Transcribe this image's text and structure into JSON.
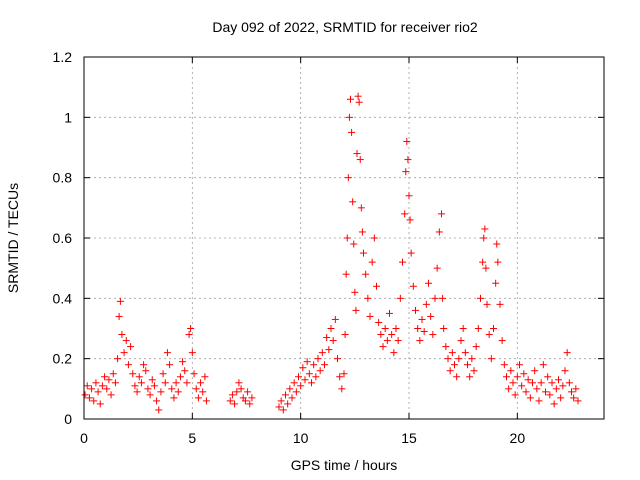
{
  "chart_data": {
    "type": "scatter",
    "title": "Day 092 of 2022, SRMTID for receiver rio2",
    "xlabel": "GPS time / hours",
    "ylabel": "SRMTID / TECUs",
    "xlim": [
      0,
      24
    ],
    "ylim": [
      0,
      1.2
    ],
    "xticks": [
      0,
      5,
      10,
      15,
      20
    ],
    "xtick_labels": [
      "0",
      "5",
      "10",
      "15",
      "20"
    ],
    "yticks": [
      0,
      0.2,
      0.4,
      0.6,
      0.8,
      1.0,
      1.2
    ],
    "ytick_labels": [
      "0",
      "0.2",
      "0.4",
      "0.6",
      "0.8",
      "1",
      "1.2"
    ],
    "grid": true,
    "marker": "+",
    "color": "#ff0000",
    "series": [
      {
        "name": "SRMTID",
        "points": [
          [
            0.05,
            0.08
          ],
          [
            0.15,
            0.11
          ],
          [
            0.25,
            0.07
          ],
          [
            0.35,
            0.1
          ],
          [
            0.45,
            0.06
          ],
          [
            0.55,
            0.12
          ],
          [
            0.65,
            0.09
          ],
          [
            0.75,
            0.05
          ],
          [
            0.85,
            0.11
          ],
          [
            0.95,
            0.14
          ],
          [
            1.05,
            0.1
          ],
          [
            1.15,
            0.13
          ],
          [
            1.25,
            0.08
          ],
          [
            1.35,
            0.15
          ],
          [
            1.45,
            0.12
          ],
          [
            1.55,
            0.2
          ],
          [
            1.62,
            0.34
          ],
          [
            1.68,
            0.39
          ],
          [
            1.75,
            0.28
          ],
          [
            1.85,
            0.22
          ],
          [
            1.95,
            0.26
          ],
          [
            2.05,
            0.18
          ],
          [
            2.15,
            0.24
          ],
          [
            2.25,
            0.15
          ],
          [
            2.35,
            0.11
          ],
          [
            2.45,
            0.09
          ],
          [
            2.55,
            0.14
          ],
          [
            2.65,
            0.12
          ],
          [
            2.75,
            0.18
          ],
          [
            2.85,
            0.16
          ],
          [
            2.95,
            0.1
          ],
          [
            3.05,
            0.08
          ],
          [
            3.15,
            0.13
          ],
          [
            3.25,
            0.11
          ],
          [
            3.35,
            0.06
          ],
          [
            3.45,
            0.03
          ],
          [
            3.55,
            0.09
          ],
          [
            3.65,
            0.15
          ],
          [
            3.75,
            0.12
          ],
          [
            3.85,
            0.22
          ],
          [
            3.95,
            0.18
          ],
          [
            4.05,
            0.1
          ],
          [
            4.15,
            0.07
          ],
          [
            4.25,
            0.12
          ],
          [
            4.35,
            0.09
          ],
          [
            4.45,
            0.14
          ],
          [
            4.55,
            0.19
          ],
          [
            4.65,
            0.16
          ],
          [
            4.75,
            0.12
          ],
          [
            4.85,
            0.28
          ],
          [
            4.92,
            0.3
          ],
          [
            5.0,
            0.22
          ],
          [
            5.08,
            0.15
          ],
          [
            5.18,
            0.1
          ],
          [
            5.28,
            0.07
          ],
          [
            5.38,
            0.12
          ],
          [
            5.48,
            0.09
          ],
          [
            5.58,
            0.14
          ],
          [
            5.65,
            0.06
          ],
          [
            6.75,
            0.06
          ],
          [
            6.85,
            0.08
          ],
          [
            6.95,
            0.05
          ],
          [
            7.05,
            0.09
          ],
          [
            7.15,
            0.12
          ],
          [
            7.25,
            0.1
          ],
          [
            7.35,
            0.07
          ],
          [
            7.45,
            0.06
          ],
          [
            7.55,
            0.09
          ],
          [
            7.65,
            0.05
          ],
          [
            7.75,
            0.07
          ],
          [
            9.0,
            0.04
          ],
          [
            9.1,
            0.06
          ],
          [
            9.2,
            0.03
          ],
          [
            9.3,
            0.08
          ],
          [
            9.4,
            0.05
          ],
          [
            9.5,
            0.1
          ],
          [
            9.6,
            0.07
          ],
          [
            9.7,
            0.12
          ],
          [
            9.8,
            0.09
          ],
          [
            9.9,
            0.14
          ],
          [
            10.0,
            0.11
          ],
          [
            10.1,
            0.17
          ],
          [
            10.2,
            0.13
          ],
          [
            10.3,
            0.19
          ],
          [
            10.4,
            0.15
          ],
          [
            10.5,
            0.12
          ],
          [
            10.6,
            0.18
          ],
          [
            10.7,
            0.14
          ],
          [
            10.8,
            0.2
          ],
          [
            10.9,
            0.16
          ],
          [
            11.0,
            0.22
          ],
          [
            11.1,
            0.18
          ],
          [
            11.2,
            0.27
          ],
          [
            11.3,
            0.23
          ],
          [
            11.4,
            0.3
          ],
          [
            11.5,
            0.26
          ],
          [
            11.6,
            0.33
          ],
          [
            11.7,
            0.2
          ],
          [
            11.8,
            0.14
          ],
          [
            11.9,
            0.1
          ],
          [
            12.0,
            0.15
          ],
          [
            12.05,
            0.28
          ],
          [
            12.1,
            0.48
          ],
          [
            12.15,
            0.6
          ],
          [
            12.2,
            0.8
          ],
          [
            12.25,
            1.0
          ],
          [
            12.3,
            1.06
          ],
          [
            12.35,
            0.95
          ],
          [
            12.4,
            0.72
          ],
          [
            12.45,
            0.58
          ],
          [
            12.5,
            0.42
          ],
          [
            12.55,
            0.36
          ],
          [
            12.6,
            0.88
          ],
          [
            12.65,
            1.07
          ],
          [
            12.7,
            1.05
          ],
          [
            12.75,
            0.86
          ],
          [
            12.8,
            0.7
          ],
          [
            12.85,
            0.62
          ],
          [
            12.9,
            0.55
          ],
          [
            13.0,
            0.48
          ],
          [
            13.1,
            0.4
          ],
          [
            13.2,
            0.34
          ],
          [
            13.3,
            0.52
          ],
          [
            13.4,
            0.6
          ],
          [
            13.5,
            0.44
          ],
          [
            13.6,
            0.32
          ],
          [
            13.7,
            0.28
          ],
          [
            13.8,
            0.24
          ],
          [
            13.9,
            0.3
          ],
          [
            14.0,
            0.26
          ],
          [
            14.1,
            0.35
          ],
          [
            14.2,
            0.28
          ],
          [
            14.3,
            0.22
          ],
          [
            14.4,
            0.3
          ],
          [
            14.5,
            0.26
          ],
          [
            14.6,
            0.4
          ],
          [
            14.7,
            0.52
          ],
          [
            14.8,
            0.68
          ],
          [
            14.85,
            0.82
          ],
          [
            14.9,
            0.92
          ],
          [
            14.95,
            0.86
          ],
          [
            15.0,
            0.74
          ],
          [
            15.05,
            0.66
          ],
          [
            15.1,
            0.55
          ],
          [
            15.2,
            0.44
          ],
          [
            15.3,
            0.36
          ],
          [
            15.4,
            0.3
          ],
          [
            15.5,
            0.26
          ],
          [
            15.6,
            0.33
          ],
          [
            15.7,
            0.29
          ],
          [
            15.8,
            0.38
          ],
          [
            15.9,
            0.45
          ],
          [
            16.0,
            0.34
          ],
          [
            16.1,
            0.28
          ],
          [
            16.2,
            0.4
          ],
          [
            16.3,
            0.5
          ],
          [
            16.4,
            0.62
          ],
          [
            16.5,
            0.68
          ],
          [
            16.55,
            0.4
          ],
          [
            16.6,
            0.3
          ],
          [
            16.7,
            0.24
          ],
          [
            16.8,
            0.2
          ],
          [
            16.9,
            0.16
          ],
          [
            17.0,
            0.22
          ],
          [
            17.1,
            0.18
          ],
          [
            17.2,
            0.14
          ],
          [
            17.3,
            0.2
          ],
          [
            17.4,
            0.26
          ],
          [
            17.5,
            0.3
          ],
          [
            17.6,
            0.22
          ],
          [
            17.7,
            0.18
          ],
          [
            17.8,
            0.14
          ],
          [
            17.9,
            0.2
          ],
          [
            18.0,
            0.16
          ],
          [
            18.1,
            0.24
          ],
          [
            18.2,
            0.3
          ],
          [
            18.3,
            0.4
          ],
          [
            18.4,
            0.52
          ],
          [
            18.45,
            0.6
          ],
          [
            18.5,
            0.63
          ],
          [
            18.55,
            0.5
          ],
          [
            18.6,
            0.38
          ],
          [
            18.7,
            0.28
          ],
          [
            18.8,
            0.2
          ],
          [
            18.9,
            0.3
          ],
          [
            19.0,
            0.45
          ],
          [
            19.05,
            0.58
          ],
          [
            19.1,
            0.52
          ],
          [
            19.2,
            0.38
          ],
          [
            19.3,
            0.26
          ],
          [
            19.4,
            0.18
          ],
          [
            19.5,
            0.14
          ],
          [
            19.6,
            0.1
          ],
          [
            19.7,
            0.16
          ],
          [
            19.8,
            0.12
          ],
          [
            19.9,
            0.08
          ],
          [
            20.0,
            0.14
          ],
          [
            20.1,
            0.18
          ],
          [
            20.2,
            0.11
          ],
          [
            20.3,
            0.15
          ],
          [
            20.4,
            0.09
          ],
          [
            20.5,
            0.13
          ],
          [
            20.6,
            0.07
          ],
          [
            20.7,
            0.12
          ],
          [
            20.8,
            0.16
          ],
          [
            20.9,
            0.1
          ],
          [
            21.0,
            0.06
          ],
          [
            21.1,
            0.12
          ],
          [
            21.2,
            0.18
          ],
          [
            21.3,
            0.09
          ],
          [
            21.4,
            0.14
          ],
          [
            21.5,
            0.08
          ],
          [
            21.6,
            0.12
          ],
          [
            21.7,
            0.05
          ],
          [
            21.8,
            0.1
          ],
          [
            21.9,
            0.13
          ],
          [
            22.0,
            0.07
          ],
          [
            22.1,
            0.11
          ],
          [
            22.2,
            0.16
          ],
          [
            22.3,
            0.22
          ],
          [
            22.4,
            0.12
          ],
          [
            22.5,
            0.09
          ],
          [
            22.6,
            0.07
          ],
          [
            22.7,
            0.1
          ],
          [
            22.8,
            0.06
          ]
        ]
      }
    ]
  }
}
